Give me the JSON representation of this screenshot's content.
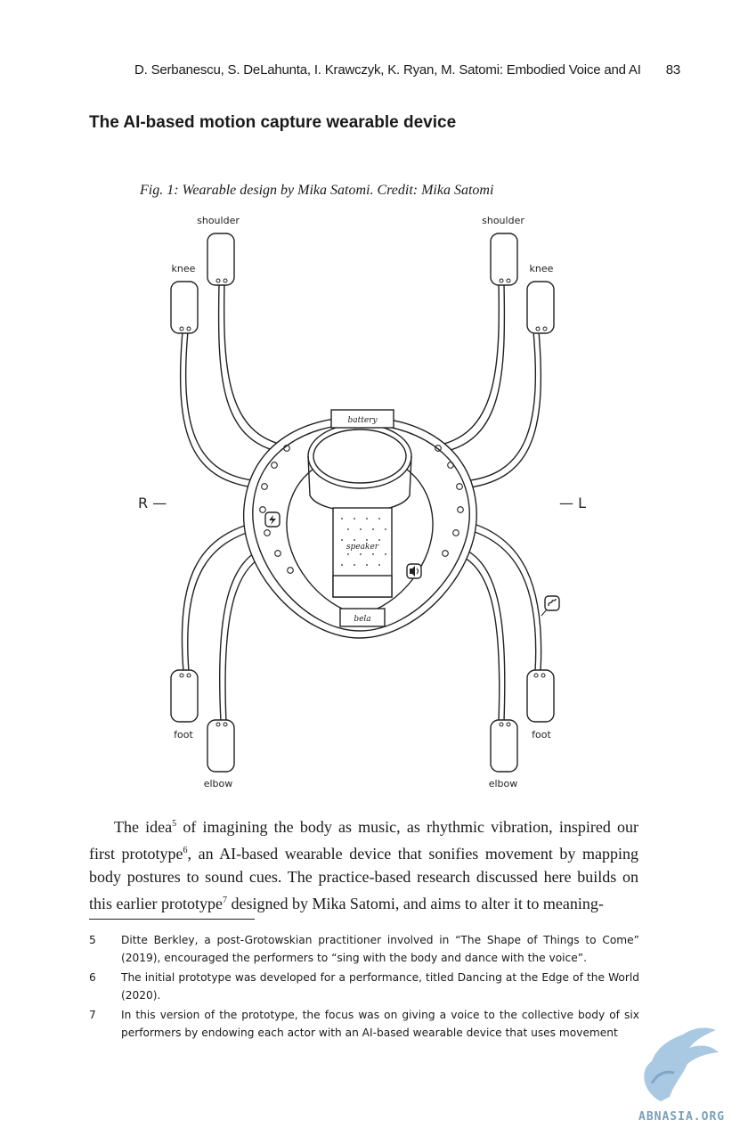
{
  "header": {
    "running_title": "D. Serbanescu, S. DeLahunta, I. Krawczyk, K. Ryan, M. Satomi: Embodied Voice and AI",
    "page_number": "83"
  },
  "section_title": "The AI-based motion capture wearable device",
  "figure": {
    "caption": "Fig. 1:  Wearable design by Mika Satomi. Credit: Mika Satomi",
    "labels": {
      "shoulder_left": "shoulder",
      "shoulder_right": "shoulder",
      "knee_left": "knee",
      "knee_right": "knee",
      "foot_left": "foot",
      "foot_right": "foot",
      "elbow_left": "elbow",
      "elbow_right": "elbow",
      "side_right": "R —",
      "side_left": "— L",
      "battery": "battery",
      "speaker": "speaker",
      "bela": "bela"
    }
  },
  "body": {
    "paragraph_a": "The idea",
    "sup_5": "5",
    "paragraph_b": " of imagining the body as music, as rhythmic vibration, inspired our first prototype",
    "sup_6": "6",
    "paragraph_c": ", an AI-based wearable device that sonifies movement by mapping body postures to sound cues. The practice-based research discussed here builds on this earlier prototype",
    "sup_7": "7",
    "paragraph_d": " designed by Mika Satomi, and aims to alter it to meaning-"
  },
  "footnotes": [
    {
      "num": "5",
      "text": "Ditte Berkley, a post-Grotowskian practitioner involved in “The Shape of Things to Come” (2019), encouraged the performers to “sing with the body and dance with the voice”."
    },
    {
      "num": "6",
      "text": "The initial prototype was developed for a performance, titled Dancing at the Edge of the World (2020)."
    },
    {
      "num": "7",
      "text": "In this version of the prototype, the focus was on giving a voice to the collective body of six performers by endowing each actor with an AI-based wearable device that uses movement"
    }
  ],
  "watermark": {
    "text": "ABNASIA.ORG",
    "color": "#7a9fb8"
  }
}
